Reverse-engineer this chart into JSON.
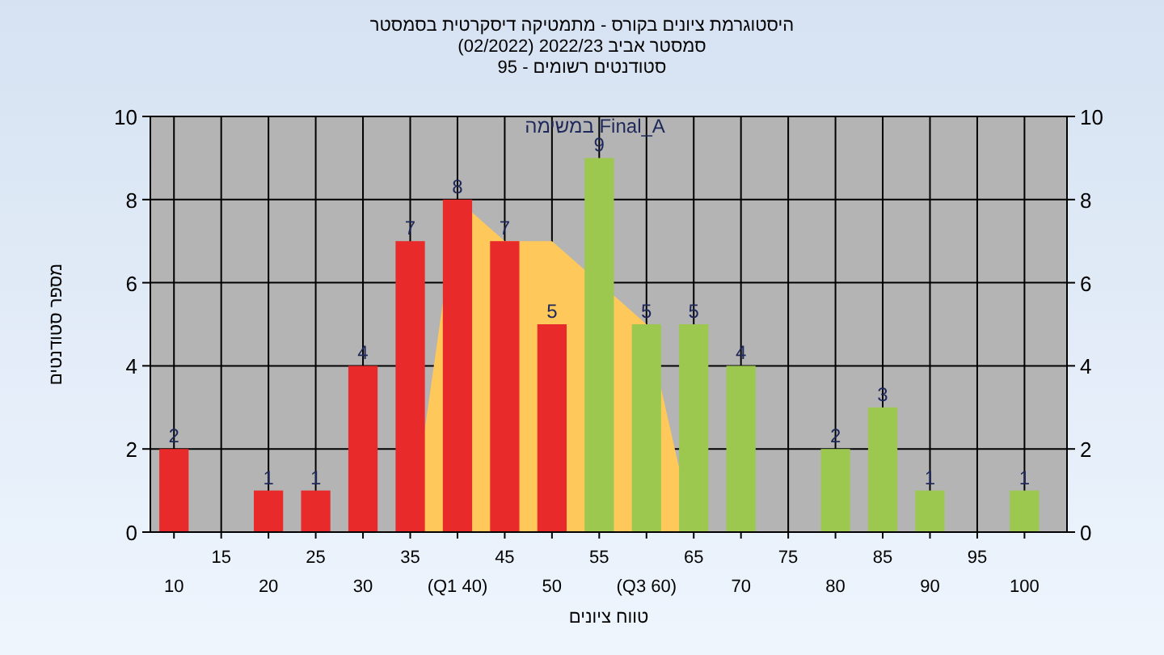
{
  "chart_data": {
    "type": "bar",
    "title": "היסטוגרמת ציונים בקורס - מתמטיקה דיסקרטית בסמסטר סמסטר אביב 2022/23 (02/2022)",
    "subtitle": "סטודנטים רשומים - 95",
    "annotations": [
      "Final_A במשימה"
    ],
    "xlabel": "טווח ציונים",
    "ylabel": "מספר סטודנטים",
    "categories": [
      "10",
      "15",
      "20",
      "25",
      "30",
      "35",
      "(Q1 40)",
      "45",
      "50",
      "55",
      "(Q3 60)",
      "65",
      "70",
      "75",
      "80",
      "85",
      "90",
      "95",
      "100"
    ],
    "series": [
      {
        "type": "area",
        "color": "#ffc85a",
        "values": [
          null,
          null,
          null,
          null,
          null,
          0,
          8,
          7,
          7,
          null,
          5,
          0,
          null,
          null,
          null,
          null,
          null,
          null,
          null
        ]
      },
      {
        "color": "#e82a2a",
        "values": [
          2,
          null,
          1,
          1,
          4,
          7,
          8,
          7,
          5,
          null,
          null,
          null,
          null,
          null,
          null,
          null,
          null,
          null,
          null
        ],
        "value_labels": [
          "2",
          null,
          "1",
          "1",
          "4",
          "7",
          "8",
          "7",
          "5",
          null,
          null,
          null,
          null,
          null,
          null,
          null,
          null,
          null,
          null
        ]
      },
      {
        "color": "#9cc850",
        "values": [
          null,
          null,
          null,
          null,
          null,
          null,
          null,
          null,
          null,
          9,
          5,
          5,
          4,
          null,
          2,
          3,
          1,
          null,
          1
        ],
        "value_labels": [
          null,
          null,
          null,
          null,
          null,
          null,
          null,
          null,
          null,
          "9",
          "5",
          "5",
          "4",
          null,
          "2",
          "3",
          "1",
          null,
          "1"
        ]
      }
    ],
    "ylim": [
      0,
      10
    ],
    "yticks": [
      0,
      2,
      4,
      6,
      8,
      10
    ],
    "y2lim": [
      0,
      10
    ],
    "y2ticks": [
      0,
      2,
      4,
      6,
      8,
      10
    ],
    "grid": true
  }
}
